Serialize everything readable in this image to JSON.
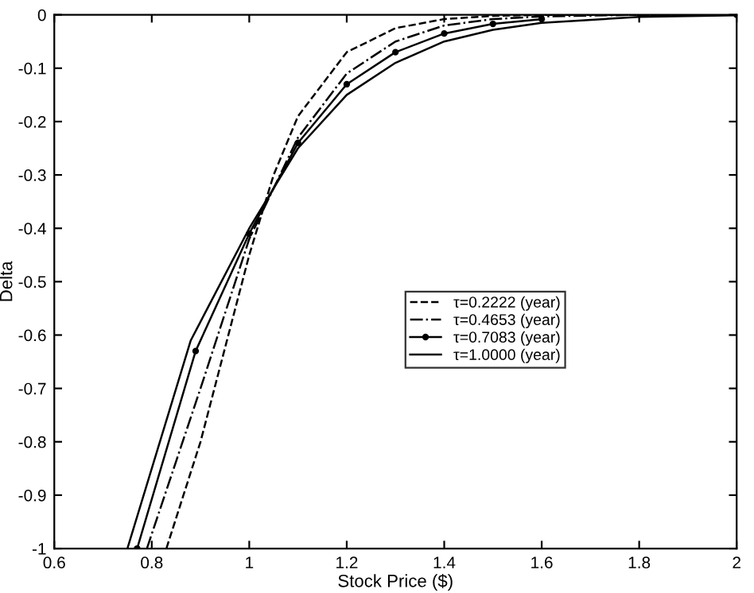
{
  "chart_data": {
    "type": "line",
    "xlabel": "Stock Price ($)",
    "ylabel": "Delta",
    "xlim": [
      0.6,
      2
    ],
    "xticks": [
      0.6,
      0.8,
      1,
      1.2,
      1.4,
      1.6,
      1.8,
      2
    ],
    "ylim": [
      -1,
      0
    ],
    "yticks": [
      -1,
      -0.9,
      -0.8,
      -0.7,
      -0.6,
      -0.5,
      -0.4,
      -0.3,
      -0.2,
      -0.1,
      0
    ],
    "grid": false,
    "legend": "right",
    "series": [
      {
        "name": "τ=0.2222 (year)",
        "color": "#000000",
        "line_style": "dashed",
        "marker": "none",
        "x": [
          0.83,
          0.9,
          1.0,
          1.05,
          1.1,
          1.2,
          1.3,
          1.4,
          1.5,
          1.6,
          2.0
        ],
        "values": [
          -1,
          -0.8,
          -0.45,
          -0.3,
          -0.19,
          -0.07,
          -0.025,
          -0.008,
          -0.002,
          0,
          0
        ]
      },
      {
        "name": "τ=0.4653 (year)",
        "color": "#000000",
        "line_style": "dashdot",
        "marker": "none",
        "x": [
          0.79,
          0.9,
          1.0,
          1.1,
          1.2,
          1.3,
          1.4,
          1.5,
          1.6,
          1.8,
          2.0
        ],
        "values": [
          -1,
          -0.7,
          -0.42,
          -0.23,
          -0.11,
          -0.05,
          -0.02,
          -0.008,
          -0.003,
          0,
          0
        ]
      },
      {
        "name": "τ=0.7083 (year)",
        "color": "#000000",
        "line_style": "solid",
        "marker": "circle",
        "x": [
          0.77,
          0.89,
          1.0,
          1.1,
          1.2,
          1.3,
          1.4,
          1.5,
          1.6,
          1.8,
          2.0
        ],
        "values": [
          -1,
          -0.63,
          -0.41,
          -0.24,
          -0.13,
          -0.07,
          -0.035,
          -0.017,
          -0.008,
          null,
          0
        ]
      },
      {
        "name": "τ=1.0000 (year)",
        "color": "#000000",
        "line_style": "solid",
        "marker": "none",
        "x": [
          0.75,
          0.88,
          1.0,
          1.1,
          1.2,
          1.3,
          1.4,
          1.5,
          1.6,
          1.8,
          2.0
        ],
        "values": [
          -1,
          -0.61,
          -0.4,
          -0.25,
          -0.15,
          -0.09,
          -0.05,
          -0.028,
          -0.015,
          -0.004,
          -0.001
        ]
      }
    ]
  }
}
